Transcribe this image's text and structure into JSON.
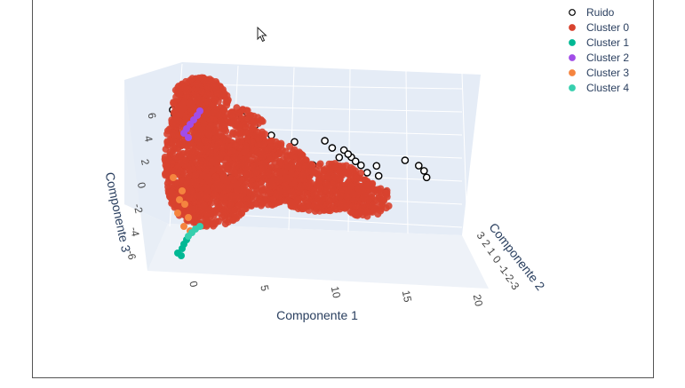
{
  "chart_data": {
    "type": "scatter",
    "title": "",
    "axes": {
      "x": {
        "label": "Componente 1",
        "ticks": [
          "0",
          "5",
          "10",
          "15",
          "20"
        ]
      },
      "y": {
        "label": "Componente 2",
        "ticks": [
          "3",
          "2",
          "1",
          "0",
          "-1",
          "-2",
          "-3"
        ]
      },
      "z": {
        "label": "Componente 3",
        "ticks": [
          "6",
          "4",
          "2",
          "0",
          "-2",
          "-4",
          "-6"
        ]
      }
    },
    "legend_position": "top-right",
    "grid": true,
    "series": [
      {
        "name": "Ruido",
        "color": "#ffffff",
        "edge": "#000000",
        "points": [
          [
            -2.5,
            0,
            6.2
          ],
          [
            -2.3,
            0,
            5.8
          ],
          [
            -1.5,
            0,
            6.6
          ],
          [
            0.5,
            0,
            6.0
          ],
          [
            1,
            0,
            5.5
          ],
          [
            2.5,
            0,
            5.1
          ],
          [
            3.3,
            0,
            5.0
          ],
          [
            3.8,
            0,
            4.7
          ],
          [
            4.5,
            0,
            4.0
          ],
          [
            6,
            0,
            3.0
          ],
          [
            8,
            0,
            2.2
          ],
          [
            10.5,
            0,
            2.0
          ],
          [
            11.2,
            0,
            1.3
          ],
          [
            11.9,
            0,
            0.4
          ],
          [
            12.2,
            0,
            1.0
          ],
          [
            12.9,
            0,
            0.3
          ],
          [
            13.3,
            0,
            -0.1
          ],
          [
            13.8,
            0,
            -0.5
          ],
          [
            14.4,
            0,
            -1.2
          ],
          [
            15.1,
            0,
            -0.7
          ],
          [
            15.4,
            0,
            -1.6
          ],
          [
            13.4,
            0,
            -2.5
          ],
          [
            16.2,
            0,
            -3.1
          ],
          [
            17.4,
            0,
            -0.5
          ],
          [
            18.6,
            0,
            -1.1
          ],
          [
            19.1,
            0,
            -1.6
          ],
          [
            19.4,
            0,
            -2.2
          ],
          [
            11.1,
            0,
            -1.7
          ],
          [
            10.6,
            0,
            -1.6
          ],
          [
            3.1,
            0,
            -0.3
          ],
          [
            4.1,
            0,
            -0.6
          ],
          [
            6,
            0,
            -0.7
          ],
          [
            7.6,
            0,
            -0.5
          ],
          [
            -0.5,
            0,
            1.6
          ],
          [
            -0.8,
            0,
            5.6
          ],
          [
            -2,
            0,
            4.4
          ],
          [
            -2.2,
            0,
            6.0
          ],
          [
            9.8,
            0,
            0.0
          ],
          [
            11.5,
            0,
            -1.0
          ],
          [
            12.6,
            0,
            0.6
          ]
        ]
      },
      {
        "name": "Cluster 0",
        "color": "#d8432f",
        "edge": "",
        "points": []
      },
      {
        "name": "Cluster 1",
        "color": "#00b894",
        "edge": "",
        "points": []
      },
      {
        "name": "Cluster 2",
        "color": "#a14de8",
        "edge": "",
        "points": []
      },
      {
        "name": "Cluster 3",
        "color": "#f5843f",
        "edge": "",
        "points": []
      },
      {
        "name": "Cluster 4",
        "color": "#36cfae",
        "edge": "",
        "points": []
      }
    ]
  }
}
